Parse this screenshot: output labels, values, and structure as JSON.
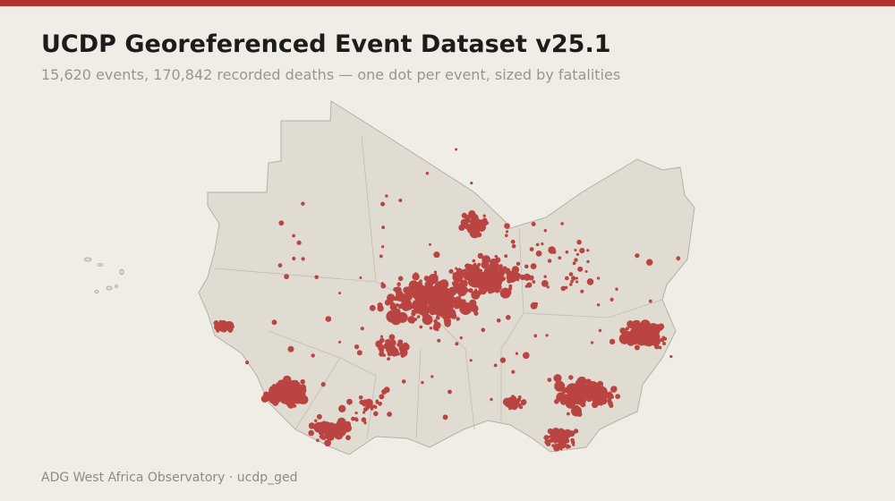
{
  "header": {
    "title": "UCDP Georeferenced Event Dataset v25.1",
    "subtitle": "15,620 events, 170,842 recorded deaths — one dot per event, sized by fatalities"
  },
  "footer": {
    "source": "ADG West Africa Observatory · ucdp_ged"
  }
}
